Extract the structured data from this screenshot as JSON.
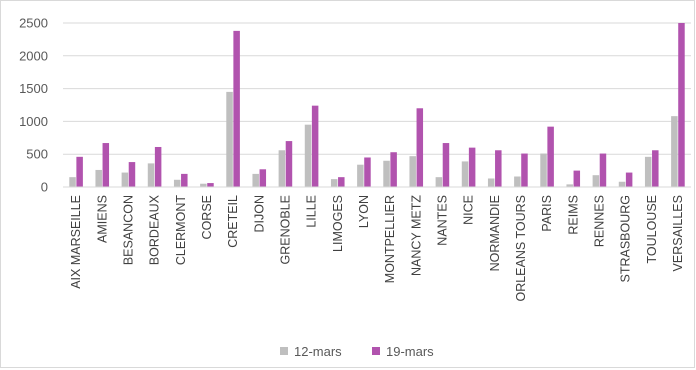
{
  "chart_data": {
    "type": "bar",
    "categories": [
      "AIX MARSEILLE",
      "AMIENS",
      "BESANCON",
      "BORDEAUX",
      "CLERMONT",
      "CORSE",
      "CRETEIL",
      "DIJON",
      "GRENOBLE",
      "LILLE",
      "LIMOGES",
      "LYON",
      "MONTPELLIER",
      "NANCY METZ",
      "NANTES",
      "NICE",
      "NORMANDIE",
      "ORLEANS TOURS",
      "PARIS",
      "REIMS",
      "RENNES",
      "STRASBOURG",
      "TOULOUSE",
      "VERSAILLES"
    ],
    "series": [
      {
        "name": "12-mars",
        "color": "#bfbfbf",
        "values": [
          150,
          260,
          220,
          360,
          110,
          50,
          1450,
          200,
          560,
          950,
          120,
          340,
          400,
          470,
          150,
          390,
          130,
          160,
          510,
          40,
          180,
          80,
          460,
          1080
        ]
      },
      {
        "name": "19-mars",
        "color": "#b153ae",
        "values": [
          460,
          670,
          380,
          610,
          200,
          60,
          2380,
          270,
          700,
          1240,
          150,
          450,
          530,
          1200,
          670,
          600,
          560,
          510,
          920,
          250,
          510,
          220,
          560,
          2500
        ]
      }
    ],
    "yticks": [
      "0",
      "500",
      "1000",
      "1500",
      "2000",
      "2500"
    ],
    "ylim": [
      0,
      2500
    ],
    "grid": true,
    "legend": "bottom",
    "title": "",
    "xlabel": "",
    "ylabel": ""
  }
}
